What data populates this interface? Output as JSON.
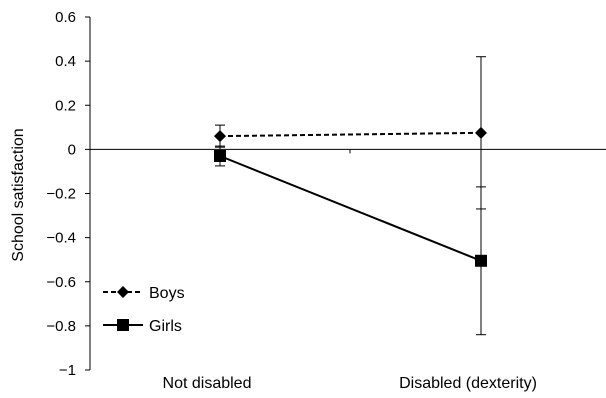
{
  "chart_data": {
    "type": "line",
    "title": "",
    "xlabel": "",
    "ylabel": "School satisfaction",
    "ylim": [
      -1,
      0.6
    ],
    "yticks": [
      0.6,
      0.4,
      0.2,
      0,
      -0.2,
      -0.4,
      -0.6,
      -0.8,
      -1
    ],
    "ytick_labels": [
      "0.6",
      "0.4",
      "0.2",
      "0",
      "−0.2",
      "−0.4",
      "−0.6",
      "−0.8",
      "−1"
    ],
    "categories": [
      "Not disabled",
      "Disabled (dexterity)"
    ],
    "grid": false,
    "legend_position": "bottom-left",
    "series": [
      {
        "name": "Boys",
        "values": [
          0.06,
          0.075
        ],
        "error_low": [
          0.01,
          -0.27
        ],
        "error_high": [
          0.11,
          0.42
        ],
        "line_style": "dashed",
        "marker": "diamond",
        "color": "#000000"
      },
      {
        "name": "Girls",
        "values": [
          -0.03,
          -0.505
        ],
        "error_low": [
          -0.075,
          -0.84
        ],
        "error_high": [
          0.015,
          -0.17
        ],
        "line_style": "solid",
        "marker": "square",
        "color": "#000000"
      }
    ]
  }
}
